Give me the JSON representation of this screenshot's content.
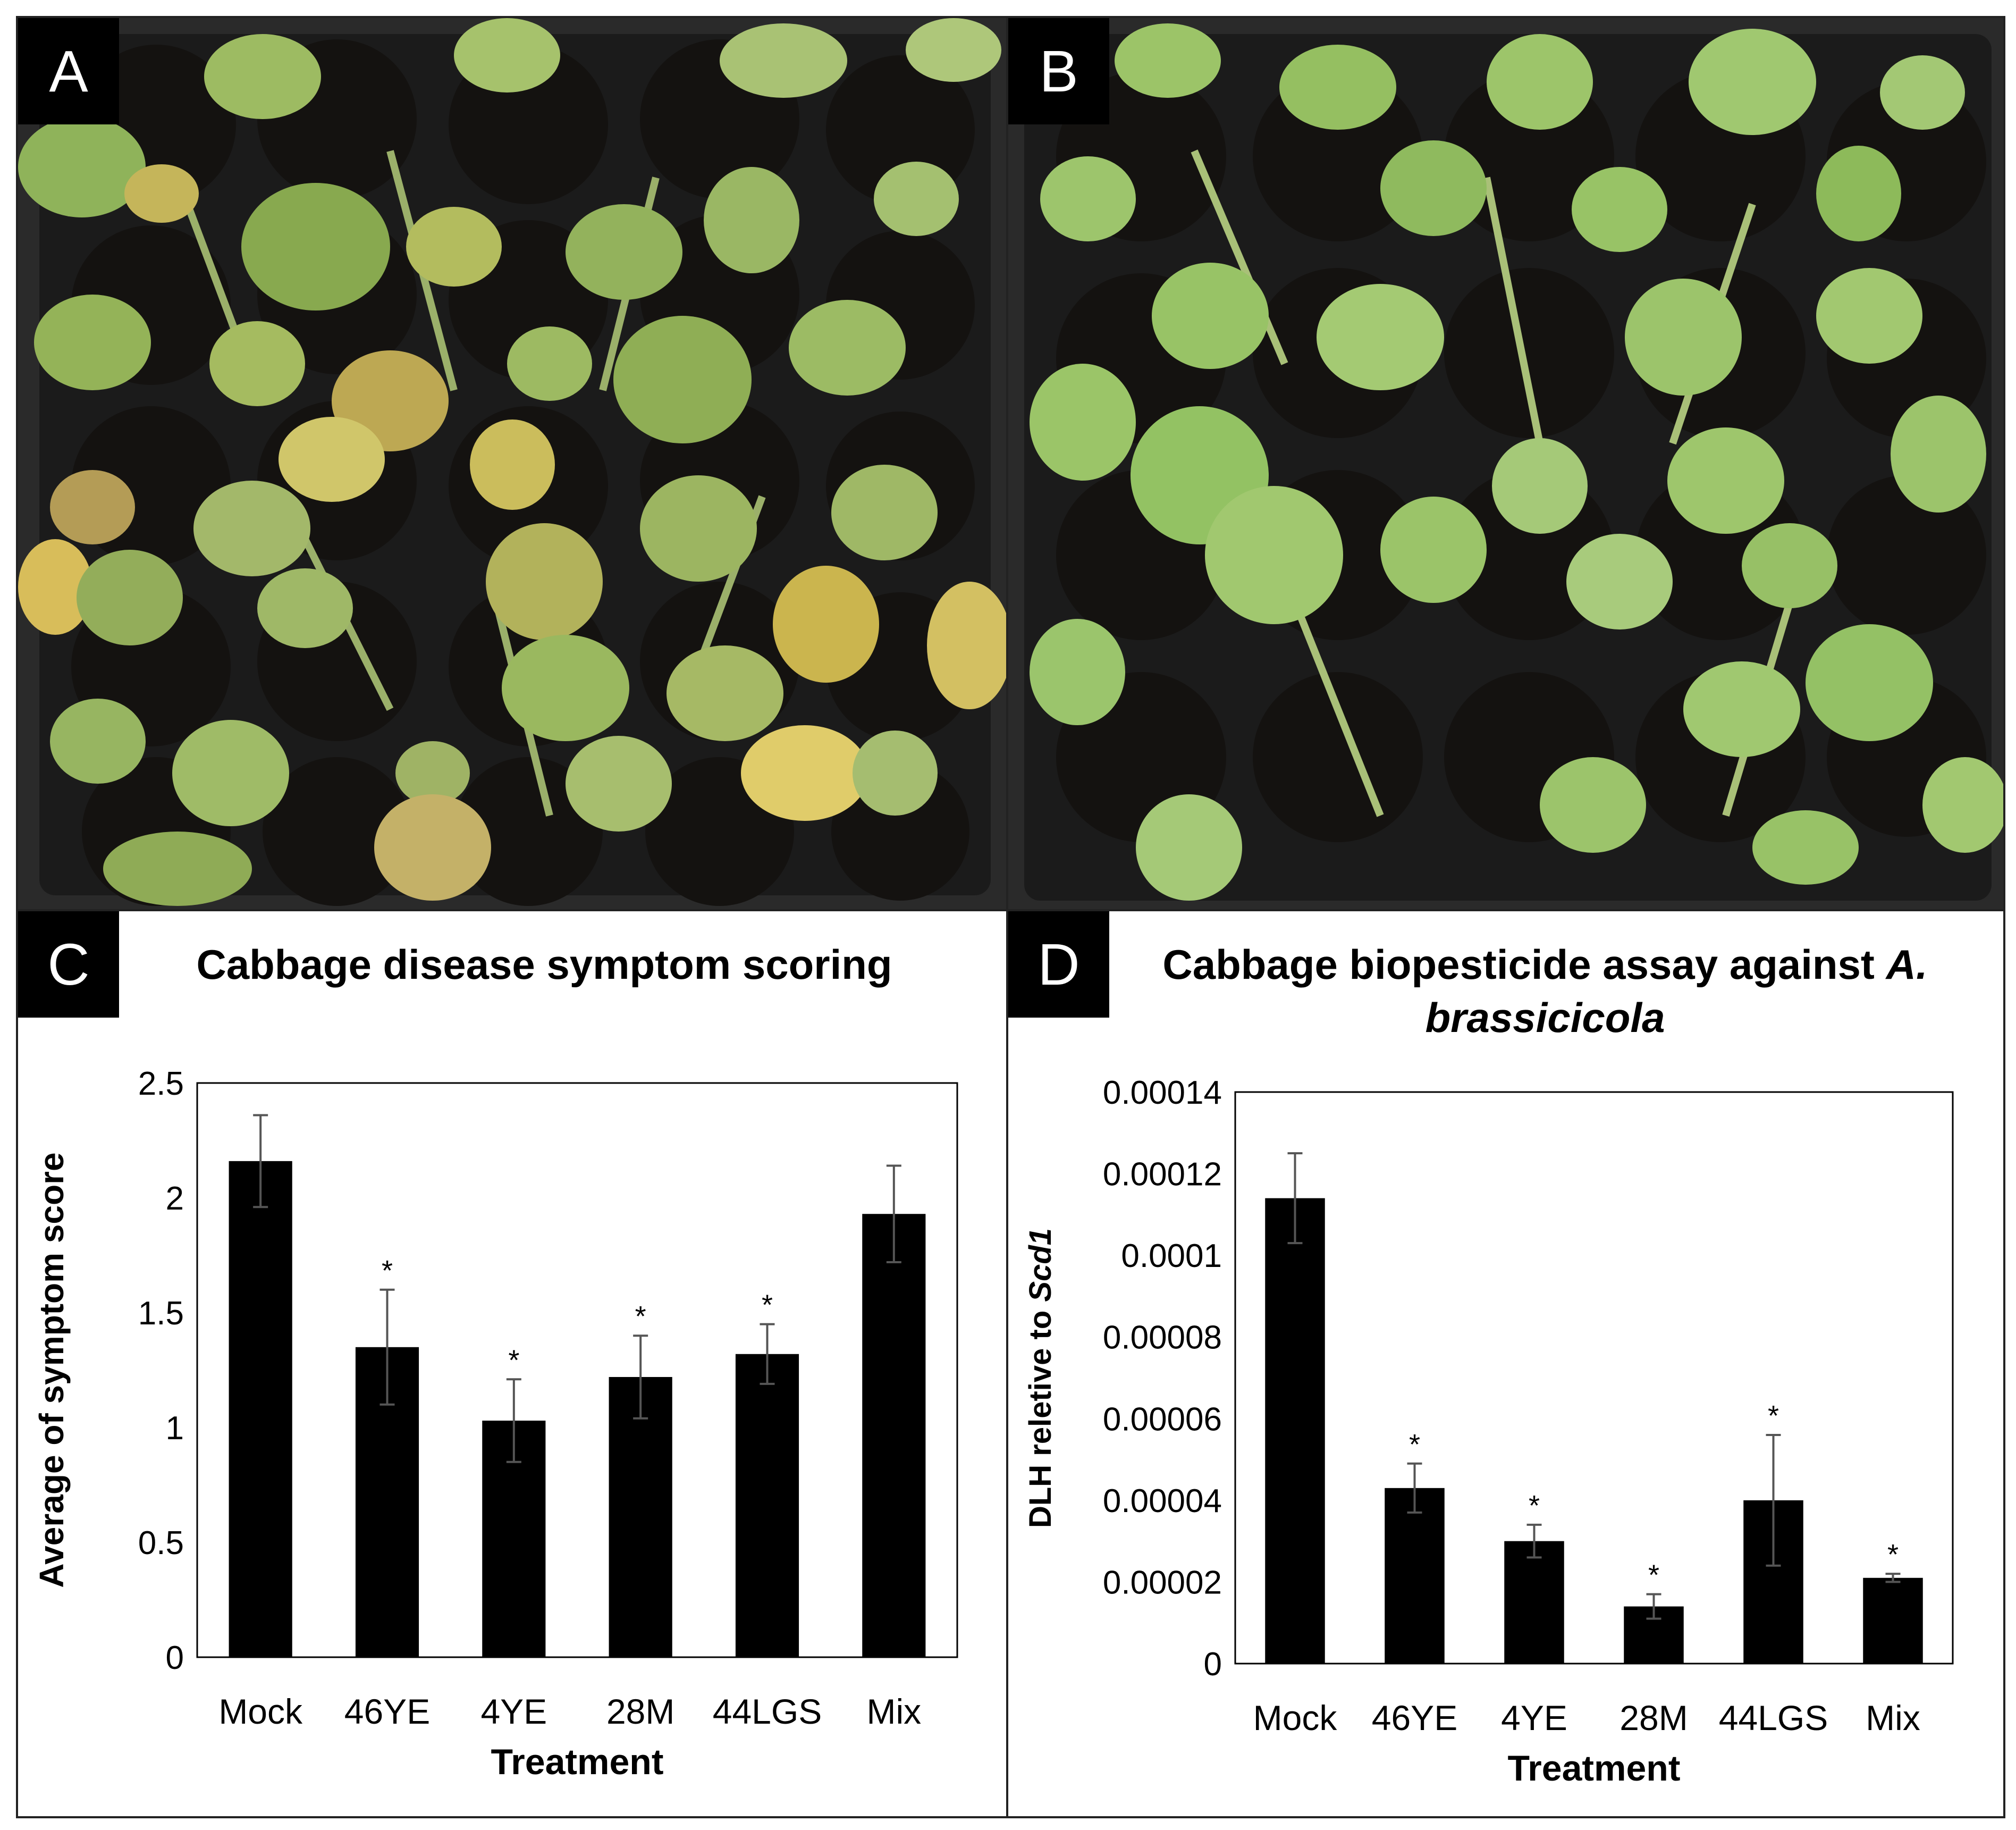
{
  "panels": {
    "a": {
      "letter": "A"
    },
    "b": {
      "letter": "B"
    },
    "c": {
      "letter": "C"
    },
    "d": {
      "letter": "D"
    }
  },
  "chart_data": [
    {
      "panel": "C",
      "type": "bar",
      "title": "Cabbage disease symptom scoring",
      "xlabel": "Treatment",
      "ylabel": "Average of symptom score",
      "categories": [
        "Mock",
        "46YE",
        "4YE",
        "28M",
        "44LGS",
        "Mix"
      ],
      "values": [
        2.16,
        1.35,
        1.03,
        1.22,
        1.32,
        1.93
      ],
      "errors": [
        0.2,
        0.25,
        0.18,
        0.18,
        0.13,
        0.21
      ],
      "significance": [
        "",
        "*",
        "*",
        "*",
        "*",
        ""
      ],
      "ylim": [
        0,
        2.5
      ],
      "yticks": [
        "0",
        "0.5",
        "1",
        "1.5",
        "2",
        "2.5"
      ],
      "grid": false,
      "bar_color": "#000000"
    },
    {
      "panel": "D",
      "type": "bar",
      "title_main": "Cabbage biopesticide assay against ",
      "title_italic_1": "A.",
      "title_italic_2": "brassicicola",
      "xlabel": "Treatment",
      "ylabel_main": "DLH reletive to ",
      "ylabel_italic": "Scd1",
      "categories": [
        "Mock",
        "46YE",
        "4YE",
        "28M",
        "44LGS",
        "Mix"
      ],
      "values": [
        0.000114,
        4.3e-05,
        3e-05,
        1.4e-05,
        4e-05,
        2.1e-05
      ],
      "errors": [
        1.1e-05,
        6e-06,
        4e-06,
        3e-06,
        1.6e-05,
        1e-06
      ],
      "significance": [
        "",
        "*",
        "*",
        "*",
        "*",
        "*"
      ],
      "ylim": [
        0,
        0.00014
      ],
      "yticks": [
        "0",
        "0.00002",
        "0.00004",
        "0.00006",
        "0.00008",
        "0.0001",
        "0.00012",
        "0.00014"
      ],
      "grid": false,
      "bar_color": "#000000"
    }
  ]
}
